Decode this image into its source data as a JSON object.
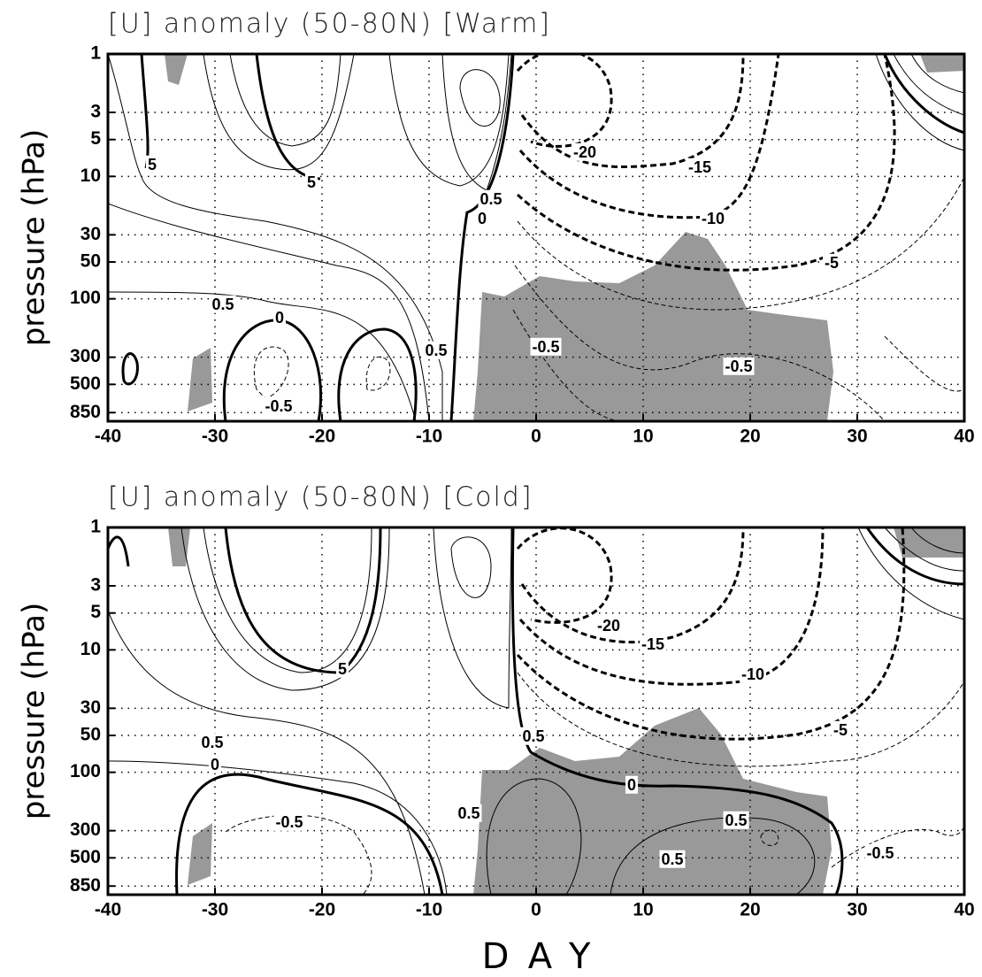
{
  "chart_data": [
    {
      "type": "contour",
      "title": "[U] anomaly (50-80N) [Warm]",
      "ylabel": "pressure (hPa)",
      "xlim": [
        -40,
        40
      ],
      "xticks": [
        -40,
        -30,
        -20,
        -10,
        0,
        10,
        20,
        30,
        40
      ],
      "ylim": [
        1,
        1000
      ],
      "yticks": [
        1,
        3,
        5,
        10,
        30,
        50,
        100,
        300,
        500,
        850
      ],
      "yscale": "log",
      "grid": true,
      "contour_labels": [
        5,
        5,
        0.5,
        0,
        -20,
        -15,
        -10,
        -5,
        0.5,
        0,
        0.5,
        -0.5,
        -0.5,
        -0.5
      ]
    },
    {
      "type": "contour",
      "title": "[U] anomaly (50-80N) [Cold]",
      "ylabel": "pressure (hPa)",
      "xlabel": "DAY",
      "xlim": [
        -40,
        40
      ],
      "xticks": [
        -40,
        -30,
        -20,
        -10,
        0,
        10,
        20,
        30,
        40
      ],
      "ylim": [
        1,
        1000
      ],
      "yticks": [
        1,
        3,
        5,
        10,
        30,
        50,
        100,
        300,
        500,
        850
      ],
      "yscale": "log",
      "grid": true,
      "contour_labels": [
        5,
        0.5,
        0,
        -0.5,
        0.5,
        0.5,
        0,
        -20,
        -15,
        -10,
        -5,
        0.5,
        0.5,
        -0.5
      ]
    }
  ]
}
